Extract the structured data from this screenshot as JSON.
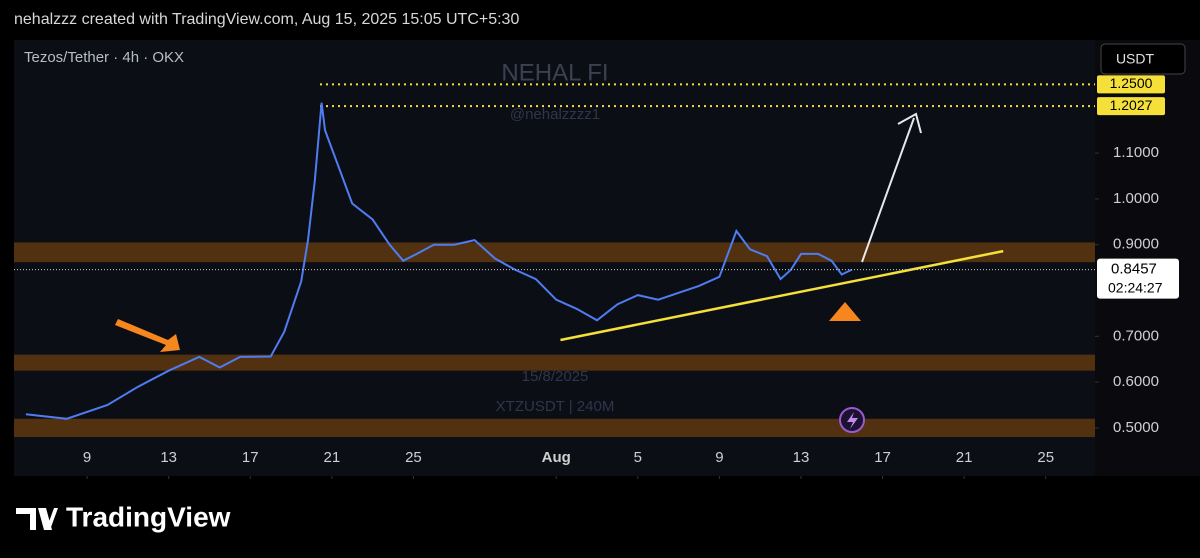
{
  "header": {
    "text": "nehalzzz created with TradingView.com, Aug 15, 2025 15:05 UTC+5:30"
  },
  "chart_data": {
    "type": "line",
    "title": "Tezos/Tether · 4h · OKX",
    "currency": "USDT",
    "watermark": {
      "name": "NEHAL FI",
      "handle": "@nehalzzzz1",
      "date": "15/8/2025",
      "symbol": "XTZUSDT | 240M"
    },
    "x": [
      "2025-07-06T00:00",
      "2025-07-08T00:00",
      "2025-07-10T00:00",
      "2025-07-11T12:00",
      "2025-07-13T00:00",
      "2025-07-14T12:00",
      "2025-07-15T12:00",
      "2025-07-16T12:00",
      "2025-07-18T00:00",
      "2025-07-18T16:00",
      "2025-07-19T12:00",
      "2025-07-19T20:00",
      "2025-07-20T04:00",
      "2025-07-20T12:00",
      "2025-07-20T16:00",
      "2025-07-21T08:00",
      "2025-07-22T00:00",
      "2025-07-23T00:00",
      "2025-07-23T20:00",
      "2025-07-24T12:00",
      "2025-07-25T04:00",
      "2025-07-26T00:00",
      "2025-07-27T00:00",
      "2025-07-28T00:00",
      "2025-07-29T00:00",
      "2025-07-30T00:00",
      "2025-07-31T00:00",
      "2025-08-01T00:00",
      "2025-08-02T00:00",
      "2025-08-03T00:00",
      "2025-08-04T00:00",
      "2025-08-05T00:00",
      "2025-08-06T00:00",
      "2025-08-07T00:00",
      "2025-08-08T00:00",
      "2025-08-09T00:00",
      "2025-08-09T20:00",
      "2025-08-10T12:00",
      "2025-08-11T08:00",
      "2025-08-12T00:00",
      "2025-08-12T12:00",
      "2025-08-13T00:00",
      "2025-08-13T20:00",
      "2025-08-14T12:00",
      "2025-08-15T00:00",
      "2025-08-15T12:00"
    ],
    "series": [
      {
        "name": "XTZUSDT",
        "color": "#4f7cf0",
        "values": [
          0.53,
          0.52,
          0.55,
          0.59,
          0.625,
          0.655,
          0.632,
          0.655,
          0.656,
          0.71,
          0.82,
          0.91,
          1.04,
          1.21,
          1.15,
          1.07,
          0.99,
          0.955,
          0.9,
          0.865,
          0.88,
          0.9,
          0.9,
          0.91,
          0.87,
          0.845,
          0.825,
          0.78,
          0.76,
          0.735,
          0.77,
          0.79,
          0.78,
          0.795,
          0.81,
          0.83,
          0.93,
          0.89,
          0.875,
          0.825,
          0.845,
          0.88,
          0.88,
          0.865,
          0.835,
          0.8457
        ]
      }
    ],
    "xlim": [
      "2025-07-05T10:00",
      "2025-08-27T10:00"
    ],
    "xticks": [
      {
        "value": "2025-07-09T00:00",
        "label": "9"
      },
      {
        "value": "2025-07-13T00:00",
        "label": "13"
      },
      {
        "value": "2025-07-17T00:00",
        "label": "17"
      },
      {
        "value": "2025-07-21T00:00",
        "label": "21"
      },
      {
        "value": "2025-07-25T00:00",
        "label": "25"
      },
      {
        "value": "2025-08-01T00:00",
        "label": "Aug"
      },
      {
        "value": "2025-08-05T00:00",
        "label": "5"
      },
      {
        "value": "2025-08-09T00:00",
        "label": "9"
      },
      {
        "value": "2025-08-13T00:00",
        "label": "13"
      },
      {
        "value": "2025-08-17T00:00",
        "label": "17"
      },
      {
        "value": "2025-08-21T00:00",
        "label": "21"
      },
      {
        "value": "2025-08-25T00:00",
        "label": "25"
      }
    ],
    "ylim": [
      0.395,
      1.347
    ],
    "yticks": [
      {
        "value": 0.5,
        "label": "0.5000"
      },
      {
        "value": 0.6,
        "label": "0.6000"
      },
      {
        "value": 0.7,
        "label": "0.7000"
      },
      {
        "value": 0.9,
        "label": "0.9000"
      },
      {
        "value": 1,
        "label": "1.0000"
      },
      {
        "value": 1.1,
        "label": "1.1000"
      }
    ],
    "grid": false,
    "levels": [
      {
        "value": 1.25,
        "label": "1.2500"
      },
      1.2027
    ],
    "level_color": "#f5e03a",
    "last_price": 0.8457,
    "countdown": "02:24:27",
    "zones": [
      [
        0.862,
        0.905
      ],
      [
        0.625,
        0.66
      ],
      [
        0.48,
        0.52
      ]
    ],
    "zone_color": "#5a3510",
    "trendline": {
      "x": [
        "2025-08-01T05:00",
        "2025-08-22T22:00"
      ],
      "values": [
        0.692,
        0.886
      ],
      "color": "#f5e03a"
    }
  },
  "footer": {
    "brand": "TradingView"
  }
}
